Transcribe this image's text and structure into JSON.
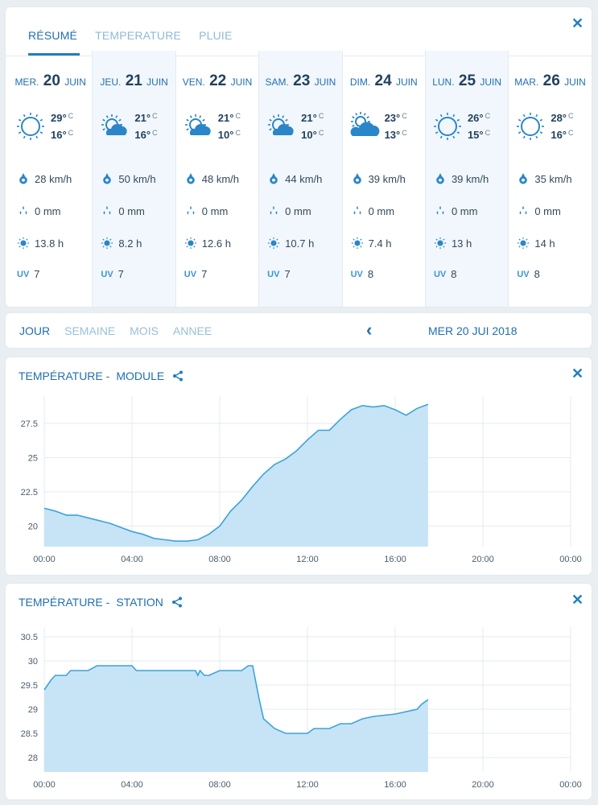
{
  "tabs": [
    {
      "label": "RÉSUMÉ",
      "active": true
    },
    {
      "label": "TEMPERATURE",
      "active": false
    },
    {
      "label": "PLUIE",
      "active": false
    }
  ],
  "days": [
    {
      "dow": "MER.",
      "num": "20",
      "month": "JUIN",
      "icon": "sun-icon",
      "hi": "29°",
      "lo": "16°",
      "wind": "28 km/h",
      "rain": "0 mm",
      "sun": "13.8 h",
      "uv": "7",
      "shaded": false
    },
    {
      "dow": "JEU.",
      "num": "21",
      "month": "JUIN",
      "icon": "sun-cloud-icon",
      "hi": "21°",
      "lo": "16°",
      "wind": "50 km/h",
      "rain": "0 mm",
      "sun": "8.2 h",
      "uv": "7",
      "shaded": true
    },
    {
      "dow": "VEN.",
      "num": "22",
      "month": "JUIN",
      "icon": "sun-cloud-icon",
      "hi": "21°",
      "lo": "10°",
      "wind": "48 km/h",
      "rain": "0 mm",
      "sun": "12.6 h",
      "uv": "7",
      "shaded": false
    },
    {
      "dow": "SAM.",
      "num": "23",
      "month": "JUIN",
      "icon": "sun-cloud-icon",
      "hi": "21°",
      "lo": "10°",
      "wind": "44 km/h",
      "rain": "0 mm",
      "sun": "10.7 h",
      "uv": "7",
      "shaded": true
    },
    {
      "dow": "DIM.",
      "num": "24",
      "month": "JUIN",
      "icon": "cloud-sun-icon",
      "hi": "23°",
      "lo": "13°",
      "wind": "39 km/h",
      "rain": "0 mm",
      "sun": "7.4 h",
      "uv": "8",
      "shaded": false
    },
    {
      "dow": "LUN.",
      "num": "25",
      "month": "JUIN",
      "icon": "sun-icon",
      "hi": "26°",
      "lo": "15°",
      "wind": "39 km/h",
      "rain": "0 mm",
      "sun": "13 h",
      "uv": "8",
      "shaded": true
    },
    {
      "dow": "MAR.",
      "num": "26",
      "month": "JUIN",
      "icon": "sun-icon",
      "hi": "28°",
      "lo": "16°",
      "wind": "35 km/h",
      "rain": "0 mm",
      "sun": "14 h",
      "uv": "8",
      "shaded": false
    }
  ],
  "unit_c": "C",
  "uv_label": "UV",
  "period": {
    "tabs": [
      {
        "label": "JOUR",
        "active": true
      },
      {
        "label": "SEMAINE",
        "active": false
      },
      {
        "label": "MOIS",
        "active": false
      },
      {
        "label": "ANNEE",
        "active": false
      }
    ],
    "date": "MER 20 JUI 2018"
  },
  "colors": {
    "accent": "#1f7ec1",
    "area_fill": "#c6e4f5",
    "area_line": "#3ea2da"
  },
  "chart_data": [
    {
      "type": "area",
      "title": "TEMPÉRATURE -",
      "subtitle": "MODULE",
      "xlabel": "",
      "ylabel": "",
      "x_ticks": [
        "00:00",
        "04:00",
        "08:00",
        "12:00",
        "16:00",
        "20:00",
        "00:00"
      ],
      "xlim": [
        0,
        24
      ],
      "y_ticks": [
        20,
        22.5,
        25,
        27.5
      ],
      "ylim": [
        18.5,
        29.5
      ],
      "grid": true,
      "x": [
        0,
        0.5,
        1,
        1.5,
        2,
        2.5,
        3,
        3.5,
        4,
        4.5,
        5,
        5.5,
        6,
        6.5,
        7,
        7.5,
        8,
        8.5,
        9,
        9.5,
        10,
        10.5,
        11,
        11.5,
        12,
        12.5,
        13,
        13.5,
        14,
        14.5,
        15,
        15.5,
        16,
        16.5,
        17,
        17.5
      ],
      "y": [
        21.3,
        21.1,
        20.8,
        20.8,
        20.6,
        20.4,
        20.2,
        19.9,
        19.6,
        19.4,
        19.1,
        19.0,
        18.9,
        18.9,
        19.0,
        19.4,
        20.0,
        21.1,
        21.9,
        22.9,
        23.8,
        24.5,
        24.9,
        25.5,
        26.3,
        27.0,
        27.0,
        27.8,
        28.5,
        28.8,
        28.7,
        28.8,
        28.5,
        28.1,
        28.6,
        28.9
      ]
    },
    {
      "type": "area",
      "title": "TEMPÉRATURE -",
      "subtitle": "STATION",
      "xlabel": "",
      "ylabel": "",
      "x_ticks": [
        "00:00",
        "04:00",
        "08:00",
        "12:00",
        "16:00",
        "20:00",
        "00:00"
      ],
      "xlim": [
        0,
        24
      ],
      "y_ticks": [
        28,
        28.5,
        29,
        29.5,
        30,
        30.5
      ],
      "ylim": [
        27.7,
        30.7
      ],
      "grid": true,
      "x": [
        0,
        0.3,
        0.5,
        1,
        1.2,
        2,
        2.4,
        3,
        4,
        4.2,
        5,
        6,
        6.9,
        7,
        7.1,
        7.3,
        7.5,
        8,
        9,
        9.3,
        9.5,
        9.8,
        10,
        10.5,
        11,
        12,
        12.3,
        13,
        13.5,
        14,
        14.5,
        15,
        16,
        17,
        17.2,
        17.5
      ],
      "y": [
        29.4,
        29.6,
        29.7,
        29.7,
        29.8,
        29.8,
        29.9,
        29.9,
        29.9,
        29.8,
        29.8,
        29.8,
        29.8,
        29.7,
        29.8,
        29.7,
        29.7,
        29.8,
        29.8,
        29.9,
        29.9,
        29.2,
        28.8,
        28.6,
        28.5,
        28.5,
        28.6,
        28.6,
        28.7,
        28.7,
        28.8,
        28.85,
        28.9,
        29.0,
        29.1,
        29.2
      ]
    }
  ]
}
